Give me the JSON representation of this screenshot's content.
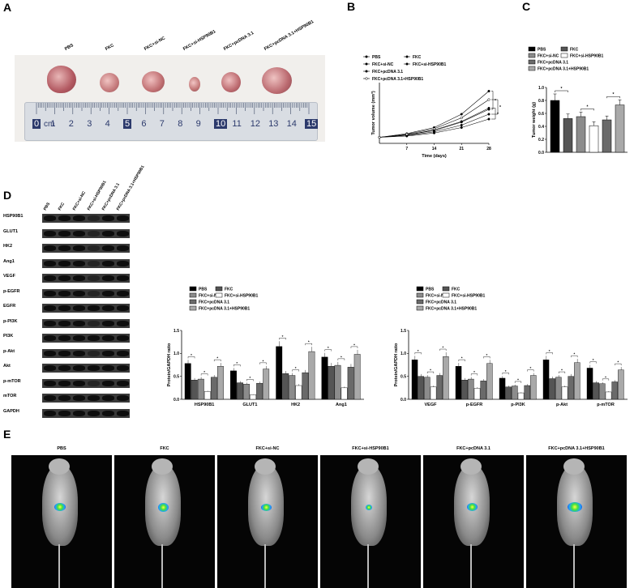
{
  "panels": {
    "A": "A",
    "B": "B",
    "C": "C",
    "D": "D",
    "E": "E"
  },
  "panelA": {
    "tumor_labels": [
      "PBS",
      "FKC",
      "FKC+si-NC",
      "FKC+si-HSP90B1",
      "FKC+pcDNA 3.1",
      "FKC+pcDNA 3.1+HSP90B1"
    ],
    "ruler": {
      "unit": "cm",
      "marks": [
        "0",
        "1",
        "2",
        "3",
        "4",
        "5",
        "6",
        "7",
        "8",
        "9",
        "10",
        "11",
        "12",
        "13",
        "14",
        "15"
      ]
    }
  },
  "chart_data": [
    {
      "id": "B",
      "type": "line",
      "xlabel": "Time (days)",
      "ylabel": "Tumor volume (mm³)",
      "x": [
        0,
        7,
        14,
        21,
        28
      ],
      "xticks": [
        "7",
        "14",
        "21",
        "28"
      ],
      "xlim": [
        0,
        28
      ],
      "ylim": [
        0,
        1000
      ],
      "series": [
        {
          "name": "PBS",
          "values": [
            100,
            160,
            260,
            480,
            860
          ]
        },
        {
          "name": "FKC",
          "values": [
            100,
            140,
            210,
            350,
            560
          ]
        },
        {
          "name": "FKC+si-NC",
          "values": [
            100,
            140,
            220,
            360,
            580
          ]
        },
        {
          "name": "FKC+si-HSP90B1",
          "values": [
            100,
            120,
            170,
            260,
            400
          ]
        },
        {
          "name": "FKC+pcDNA 3.1",
          "values": [
            100,
            130,
            190,
            300,
            480
          ]
        },
        {
          "name": "FKC+pcDNA 3.1+HSP90B1",
          "values": [
            100,
            150,
            240,
            420,
            720
          ]
        }
      ],
      "sig": [
        "*",
        "*",
        "*"
      ]
    },
    {
      "id": "C",
      "type": "bar",
      "ylabel": "Tumor weight (g)",
      "yticks": [
        "0.0",
        "0.2",
        "0.4",
        "0.6",
        "0.8",
        "1.0"
      ],
      "ylim": [
        0,
        1.0
      ],
      "series": [
        {
          "name": "PBS",
          "value": 0.8,
          "err": 0.1
        },
        {
          "name": "FKC",
          "value": 0.52,
          "err": 0.07
        },
        {
          "name": "FKC+si-NC",
          "value": 0.55,
          "err": 0.07
        },
        {
          "name": "FKC+si-HSP90B1",
          "value": 0.41,
          "err": 0.06
        },
        {
          "name": "FKC+pcDNA 3.1",
          "value": 0.5,
          "err": 0.06
        },
        {
          "name": "FKC+pcDNA 3.1+HSP90B1",
          "value": 0.73,
          "err": 0.08
        }
      ],
      "sig": [
        "*",
        "*",
        "*"
      ]
    },
    {
      "id": "D1",
      "type": "bar",
      "ylabel": "Protein/GAPDH ratio",
      "yticks": [
        "0.0",
        "0.5",
        "1.0",
        "1.5"
      ],
      "ylim": [
        0,
        1.5
      ],
      "categories": [
        "HSP90B1",
        "GLUT1",
        "HK2",
        "Ang1"
      ],
      "series": [
        {
          "name": "PBS",
          "values": [
            0.78,
            0.62,
            1.15,
            0.92
          ]
        },
        {
          "name": "FKC",
          "values": [
            0.42,
            0.36,
            0.56,
            0.72
          ]
        },
        {
          "name": "FKC+si-NC",
          "values": [
            0.44,
            0.33,
            0.52,
            0.74
          ]
        },
        {
          "name": "FKC+si-HSP90B1",
          "values": [
            0.17,
            0.1,
            0.3,
            0.25
          ]
        },
        {
          "name": "FKC+pcDNA 3.1",
          "values": [
            0.48,
            0.35,
            0.58,
            0.7
          ]
        },
        {
          "name": "FKC+pcDNA 3.1+HSP90B1",
          "values": [
            0.72,
            0.66,
            1.04,
            0.98
          ]
        }
      ],
      "sig": "*"
    },
    {
      "id": "D2",
      "type": "bar",
      "ylabel": "Protein/GAPDH ratio",
      "yticks": [
        "0.0",
        "0.5",
        "1.0",
        "1.5"
      ],
      "ylim": [
        0,
        1.5
      ],
      "categories": [
        "VEGF",
        "p-EGFR",
        "p-PI3K",
        "p-Akt",
        "p-mTOR"
      ],
      "series": [
        {
          "name": "PBS",
          "values": [
            0.86,
            0.72,
            0.46,
            0.86,
            0.68
          ]
        },
        {
          "name": "FKC",
          "values": [
            0.5,
            0.42,
            0.27,
            0.45,
            0.36
          ]
        },
        {
          "name": "FKC+si-NC",
          "values": [
            0.48,
            0.44,
            0.29,
            0.48,
            0.34
          ]
        },
        {
          "name": "FKC+si-HSP90B1",
          "values": [
            0.27,
            0.24,
            0.14,
            0.27,
            0.16
          ]
        },
        {
          "name": "FKC+pcDNA 3.1",
          "values": [
            0.52,
            0.4,
            0.3,
            0.5,
            0.38
          ]
        },
        {
          "name": "FKC+pcDNA 3.1+HSP90B1",
          "values": [
            0.93,
            0.78,
            0.52,
            0.8,
            0.64
          ]
        }
      ],
      "sig": "*"
    }
  ],
  "colors": {
    "PBS": "#000000",
    "FKC": "#555555",
    "FKC+si-NC": "#8c8c8c",
    "FKC+si-HSP90B1": "#ffffff",
    "FKC+pcDNA 3.1": "#6a6a6a",
    "FKC+pcDNA 3.1+HSP90B1": "#a9a9a9"
  },
  "panelD": {
    "lanes": [
      "PBS",
      "FKC",
      "FKC+si-NC",
      "FKC+si-HSP90B1",
      "FKC+pcDNA 3.1",
      "FKC+pcDNA 3.1+HSP90B1"
    ],
    "rows": [
      "HSP90B1",
      "GLUT1",
      "HK2",
      "Ang1",
      "VEGF",
      "p-EGFR",
      "EGFR",
      "p-PI3K",
      "PI3K",
      "p-Akt",
      "Akt",
      "p-mTOR",
      "mTOR",
      "GAPDH"
    ]
  },
  "panelE": {
    "titles": [
      "PBS",
      "FKC",
      "FKC+si-NC",
      "FKC+si-HSP90B1",
      "FKC+pcDNA 3.1",
      "FKC+pcDNA 3.1+HSP90B1"
    ]
  }
}
